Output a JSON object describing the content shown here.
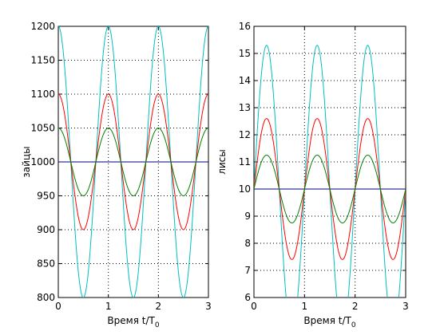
{
  "chart_data": [
    {
      "type": "line",
      "ylabel": "зайцы",
      "xlabel_main": "Время t/T",
      "xlabel_sub": "0",
      "xlim": [
        0,
        3
      ],
      "ylim": [
        800,
        1200
      ],
      "xticks": [
        "0",
        "1",
        "2",
        "3"
      ],
      "yticks": [
        "800",
        "850",
        "900",
        "950",
        "1000",
        "1050",
        "1100",
        "1150",
        "1200"
      ],
      "grid": true,
      "series": [
        {
          "color": "#00007f",
          "equilibrium": 1000,
          "amplitude": 0,
          "shape": "cos"
        },
        {
          "color": "#00bfbf",
          "equilibrium": 1000,
          "amplitude": 200,
          "shape": "cos"
        },
        {
          "color": "#ff0000",
          "equilibrium": 1000,
          "amplitude": 100,
          "shape": "cos"
        },
        {
          "color": "#007f00",
          "equilibrium": 1000,
          "amplitude": 50,
          "shape": "cos"
        }
      ]
    },
    {
      "type": "line",
      "ylabel": "лисы",
      "xlabel_main": "Время t/T",
      "xlabel_sub": "0",
      "xlim": [
        0,
        3
      ],
      "ylim": [
        6,
        16
      ],
      "xticks": [
        "0",
        "1",
        "2",
        "3"
      ],
      "yticks": [
        "6",
        "7",
        "8",
        "9",
        "10",
        "11",
        "12",
        "13",
        "14",
        "15",
        "16"
      ],
      "grid": true,
      "series": [
        {
          "color": "#00007f",
          "equilibrium": 10,
          "amplitude": 0,
          "shape": "sin"
        },
        {
          "color": "#00bfbf",
          "equilibrium": 10,
          "amplitude": 5.3,
          "shape": "sin"
        },
        {
          "color": "#ff0000",
          "equilibrium": 10,
          "amplitude": 2.6,
          "shape": "sin"
        },
        {
          "color": "#007f00",
          "equilibrium": 10,
          "amplitude": 1.25,
          "shape": "sin"
        }
      ]
    }
  ]
}
